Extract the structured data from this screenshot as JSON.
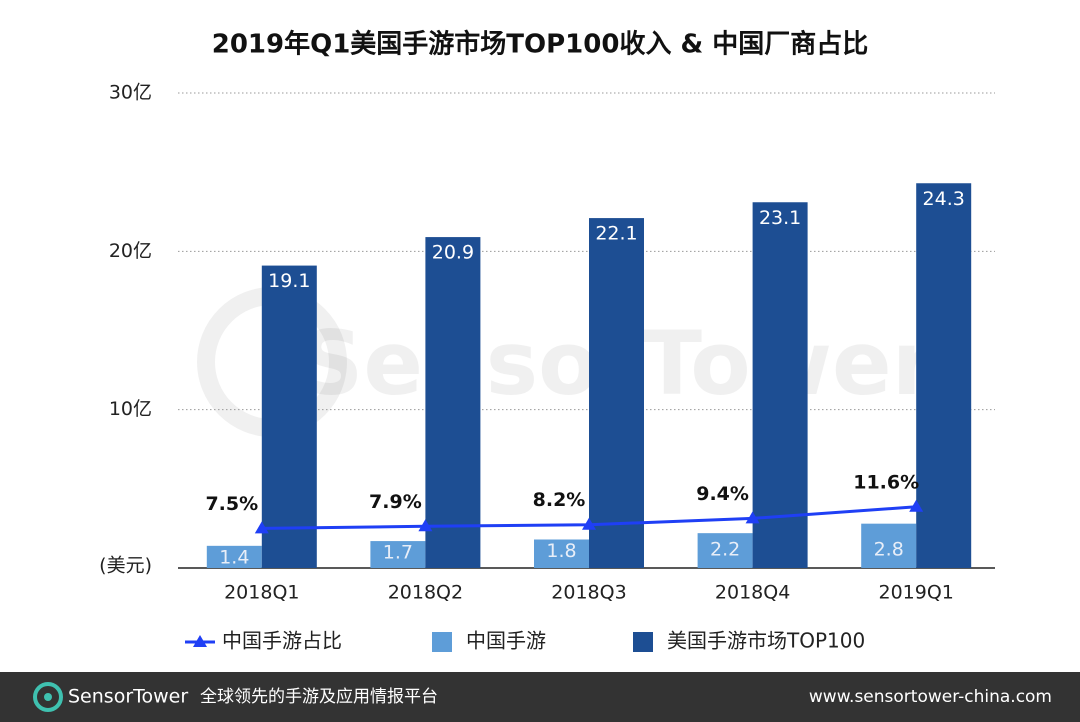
{
  "chart_data": {
    "type": "bar",
    "title": "2019年Q1美国手游市场TOP100收入 & 中国厂商占比",
    "ylabel": "(美元)",
    "watermark": "SensorTower",
    "categories": [
      "2018Q1",
      "2018Q2",
      "2018Q3",
      "2018Q4",
      "2019Q1"
    ],
    "series": [
      {
        "name": "中国手游占比",
        "type": "line",
        "axis": "y2",
        "color": "#1f3ff5",
        "values": [
          7.5,
          7.9,
          8.2,
          9.4,
          11.6
        ],
        "value_labels": [
          "7.5%",
          "7.9%",
          "8.2%",
          "9.4%",
          "11.6%"
        ]
      },
      {
        "name": "中国手游",
        "type": "bar",
        "color": "#5e9dd8",
        "values": [
          1.4,
          1.7,
          1.8,
          2.2,
          2.8
        ]
      },
      {
        "name": "美国手游市场TOP100",
        "type": "bar",
        "color": "#1d4e93",
        "values": [
          19.1,
          20.9,
          22.1,
          23.1,
          24.3
        ]
      }
    ],
    "ylim": [
      0,
      30
    ],
    "yticks": [
      {
        "value": 10,
        "label": "10亿"
      },
      {
        "value": 20,
        "label": "20亿"
      },
      {
        "value": 30,
        "label": "30亿"
      }
    ],
    "y2lim": [
      0,
      90
    ],
    "grid": true,
    "legend": "bottom"
  },
  "footer": {
    "brand": "SensorTower",
    "slogan": "全球领先的手游及应用情报平台",
    "url": "www.sensortower-china.com"
  }
}
